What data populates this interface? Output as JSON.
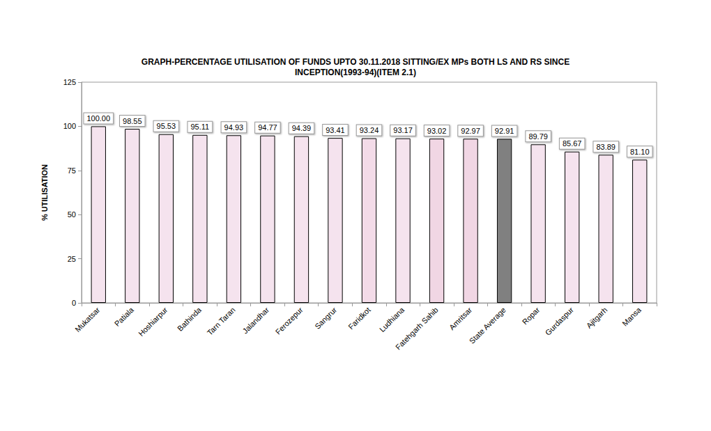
{
  "chart_data": {
    "type": "bar",
    "title": "GRAPH-PERCENTAGE UTILISATION OF FUNDS UPTO 30.11.2018 SITTING/EX MPs BOTH LS AND RS SINCE\nINCEPTION(1993-94)(ITEM 2.1)",
    "y_label": "% UTILISATION",
    "categories": [
      "Mukatsar",
      "Patiala",
      "Hoshiarpur",
      "Bathinda",
      "Tarn Taran",
      "Jalandhar",
      "Ferozepur",
      "Sangrur",
      "Faridkot",
      "Ludhiana",
      "Fatehgarh Sahib",
      "Amritsar",
      "State Average",
      "Ropar",
      "Gurdaspur",
      "Ajitgarh",
      "Mansa"
    ],
    "values": [
      100,
      98.55,
      95.53,
      95.11,
      94.93,
      94.77,
      94.39,
      93.41,
      93.24,
      93.17,
      93.02,
      92.97,
      92.91,
      89.79,
      85.67,
      83.89,
      81.1
    ],
    "value_labels": [
      "100.00",
      "98.55",
      "95.53",
      "95.11",
      "94.93",
      "94.77",
      "94.39",
      "93.41",
      "93.24",
      "93.17",
      "93.02",
      "92.97",
      "92.91",
      "89.79",
      "85.67",
      "83.89",
      "81.10"
    ],
    "colors": [
      "#f5e3ee",
      "#f5e3ee",
      "#f5e3ee",
      "#f5e3ee",
      "#f5e3ee",
      "#f5e3ee",
      "#f5e3ee",
      "#f5e3ee",
      "#f3dbe8",
      "#f5e3ee",
      "#f1d6e4",
      "#f1d6e4",
      "#808080",
      "#f5e3ee",
      "#f5e3ee",
      "#f5e3ee",
      "#f5e3ee"
    ],
    "ylim": [
      0,
      125
    ],
    "yticks": [
      0,
      25,
      50,
      75,
      100,
      125
    ],
    "grid": false,
    "data_labels": true
  }
}
